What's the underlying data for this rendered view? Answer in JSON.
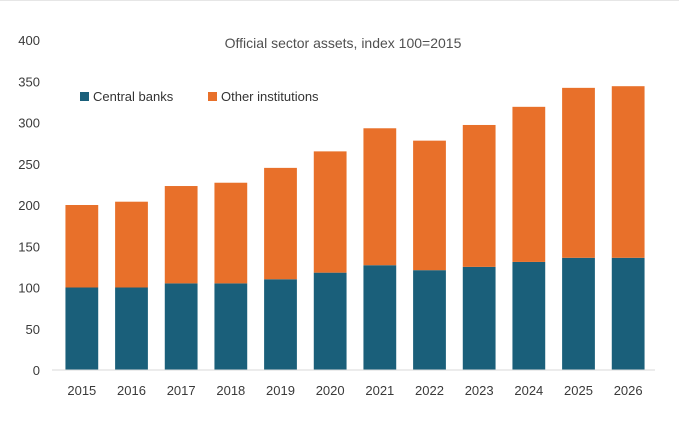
{
  "chart_data": {
    "type": "bar",
    "stacked": true,
    "title": "Official sector assets, index 100=2015",
    "xlabel": "",
    "ylabel": "",
    "categories": [
      "2015",
      "2016",
      "2017",
      "2018",
      "2019",
      "2020",
      "2021",
      "2022",
      "2023",
      "2024",
      "2025",
      "2026"
    ],
    "series": [
      {
        "name": "Central banks",
        "color": "#1a5f7a",
        "values": [
          100,
          100,
          105,
          105,
          110,
          118,
          127,
          121,
          125,
          131,
          136,
          136
        ]
      },
      {
        "name": "Other institutions",
        "color": "#e8702a",
        "values": [
          100,
          104,
          118,
          122,
          135,
          147,
          166,
          157,
          172,
          188,
          206,
          208
        ]
      }
    ],
    "ylim": [
      0,
      400
    ],
    "yticks": [
      "0",
      "50",
      "100",
      "150",
      "200",
      "250",
      "300",
      "350",
      "400"
    ],
    "grid": false,
    "legend_position": "top-left"
  }
}
